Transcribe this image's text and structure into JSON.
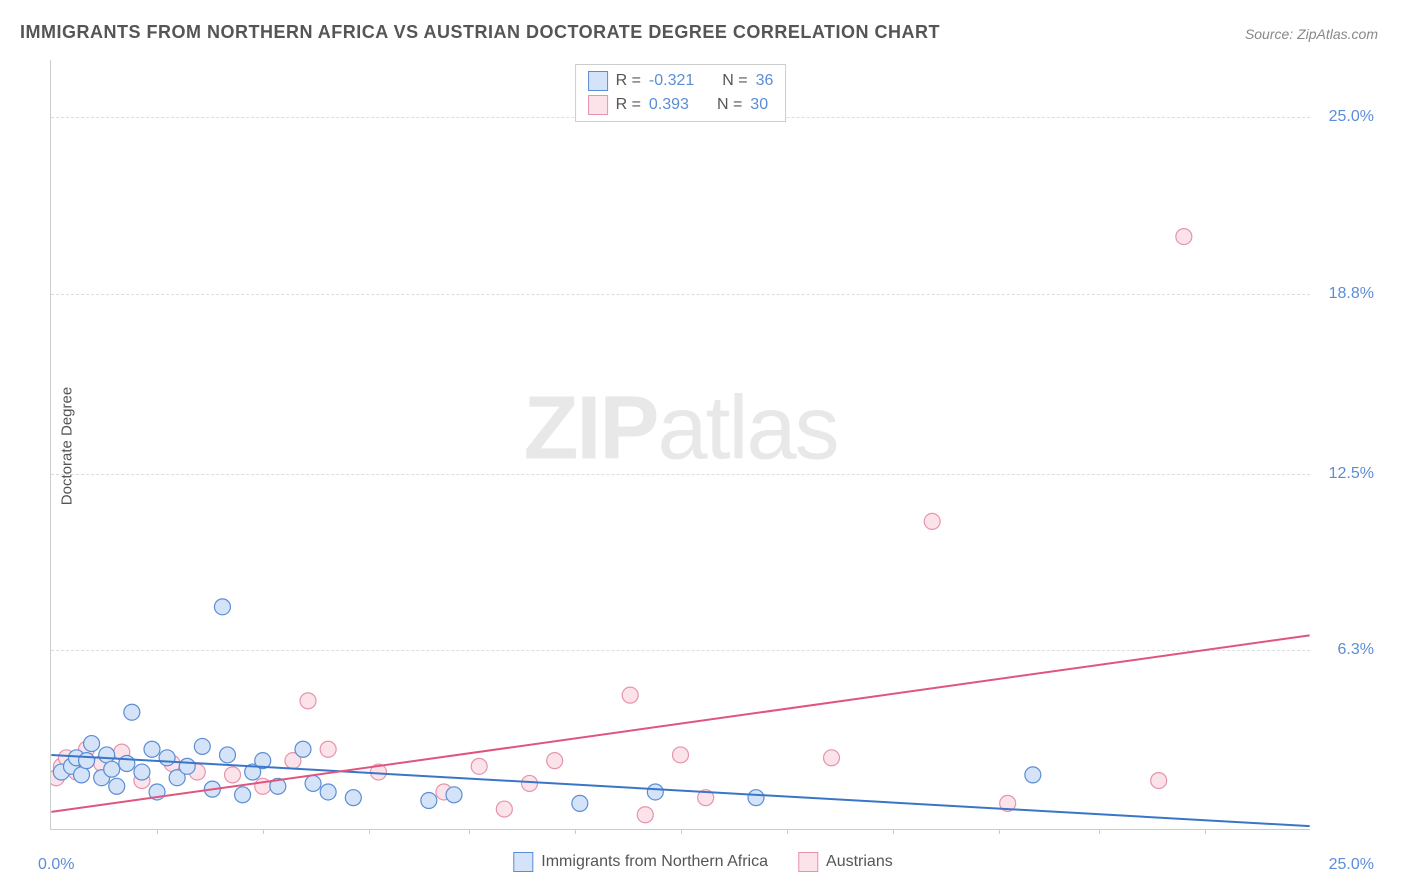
{
  "title": "IMMIGRANTS FROM NORTHERN AFRICA VS AUSTRIAN DOCTORATE DEGREE CORRELATION CHART",
  "source": "Source: ZipAtlas.com",
  "watermark_zip": "ZIP",
  "watermark_atlas": "atlas",
  "y_axis_label": "Doctorate Degree",
  "chart": {
    "type": "scatter",
    "xlim": [
      0.0,
      25.0
    ],
    "ylim": [
      0.0,
      27.0
    ],
    "y_ticks": [
      6.3,
      12.5,
      18.8,
      25.0
    ],
    "y_tick_labels": [
      "6.3%",
      "12.5%",
      "18.8%",
      "25.0%"
    ],
    "x_tick_origin": "0.0%",
    "x_tick_max": "25.0%",
    "x_tickmarks": [
      2.1,
      4.2,
      6.3,
      8.3,
      10.4,
      12.5,
      14.6,
      16.7,
      18.8,
      20.8,
      22.9
    ],
    "grid_color": "#dddddd",
    "background_color": "#ffffff",
    "marker_radius": 8,
    "marker_stroke_width": 1.2,
    "line_width": 2,
    "series": [
      {
        "name": "Immigrants from Northern Africa",
        "key": "blue",
        "fill": "#d4e3f7",
        "stroke": "#5b8dd6",
        "line_color": "#3a76c8",
        "R": "-0.321",
        "N": "36",
        "trend": {
          "x1": 0.0,
          "y1": 2.6,
          "x2": 25.0,
          "y2": 0.1
        },
        "points": [
          [
            0.2,
            2.0
          ],
          [
            0.4,
            2.2
          ],
          [
            0.5,
            2.5
          ],
          [
            0.6,
            1.9
          ],
          [
            0.7,
            2.4
          ],
          [
            0.8,
            3.0
          ],
          [
            1.0,
            1.8
          ],
          [
            1.1,
            2.6
          ],
          [
            1.2,
            2.1
          ],
          [
            1.3,
            1.5
          ],
          [
            1.5,
            2.3
          ],
          [
            1.6,
            4.1
          ],
          [
            1.8,
            2.0
          ],
          [
            2.0,
            2.8
          ],
          [
            2.1,
            1.3
          ],
          [
            2.3,
            2.5
          ],
          [
            2.5,
            1.8
          ],
          [
            2.7,
            2.2
          ],
          [
            3.0,
            2.9
          ],
          [
            3.2,
            1.4
          ],
          [
            3.4,
            7.8
          ],
          [
            3.5,
            2.6
          ],
          [
            3.8,
            1.2
          ],
          [
            4.0,
            2.0
          ],
          [
            4.2,
            2.4
          ],
          [
            4.5,
            1.5
          ],
          [
            5.0,
            2.8
          ],
          [
            5.2,
            1.6
          ],
          [
            5.5,
            1.3
          ],
          [
            6.0,
            1.1
          ],
          [
            7.5,
            1.0
          ],
          [
            8.0,
            1.2
          ],
          [
            10.5,
            0.9
          ],
          [
            12.0,
            1.3
          ],
          [
            14.0,
            1.1
          ],
          [
            19.5,
            1.9
          ]
        ]
      },
      {
        "name": "Austrians",
        "key": "pink",
        "fill": "#fce3ea",
        "stroke": "#e694ab",
        "line_color": "#e0557d",
        "R": "0.393",
        "N": "30",
        "trend": {
          "x1": 0.0,
          "y1": 0.6,
          "x2": 25.0,
          "y2": 6.8
        },
        "points": [
          [
            0.1,
            1.8
          ],
          [
            0.2,
            2.2
          ],
          [
            0.3,
            2.5
          ],
          [
            0.5,
            2.0
          ],
          [
            0.7,
            2.8
          ],
          [
            1.0,
            2.3
          ],
          [
            1.4,
            2.7
          ],
          [
            1.8,
            1.7
          ],
          [
            2.4,
            2.3
          ],
          [
            2.9,
            2.0
          ],
          [
            3.6,
            1.9
          ],
          [
            4.2,
            1.5
          ],
          [
            4.8,
            2.4
          ],
          [
            5.1,
            4.5
          ],
          [
            5.5,
            2.8
          ],
          [
            6.5,
            2.0
          ],
          [
            7.8,
            1.3
          ],
          [
            8.5,
            2.2
          ],
          [
            9.0,
            0.7
          ],
          [
            9.5,
            1.6
          ],
          [
            10.0,
            2.4
          ],
          [
            11.5,
            4.7
          ],
          [
            11.8,
            0.5
          ],
          [
            12.5,
            2.6
          ],
          [
            13.0,
            1.1
          ],
          [
            15.5,
            2.5
          ],
          [
            17.5,
            10.8
          ],
          [
            19.0,
            0.9
          ],
          [
            22.0,
            1.7
          ],
          [
            22.5,
            20.8
          ]
        ]
      }
    ]
  },
  "legend_top": {
    "r_label": "R =",
    "n_label": "N ="
  },
  "legend_bottom": {
    "series1": "Immigrants from Northern Africa",
    "series2": "Austrians"
  }
}
